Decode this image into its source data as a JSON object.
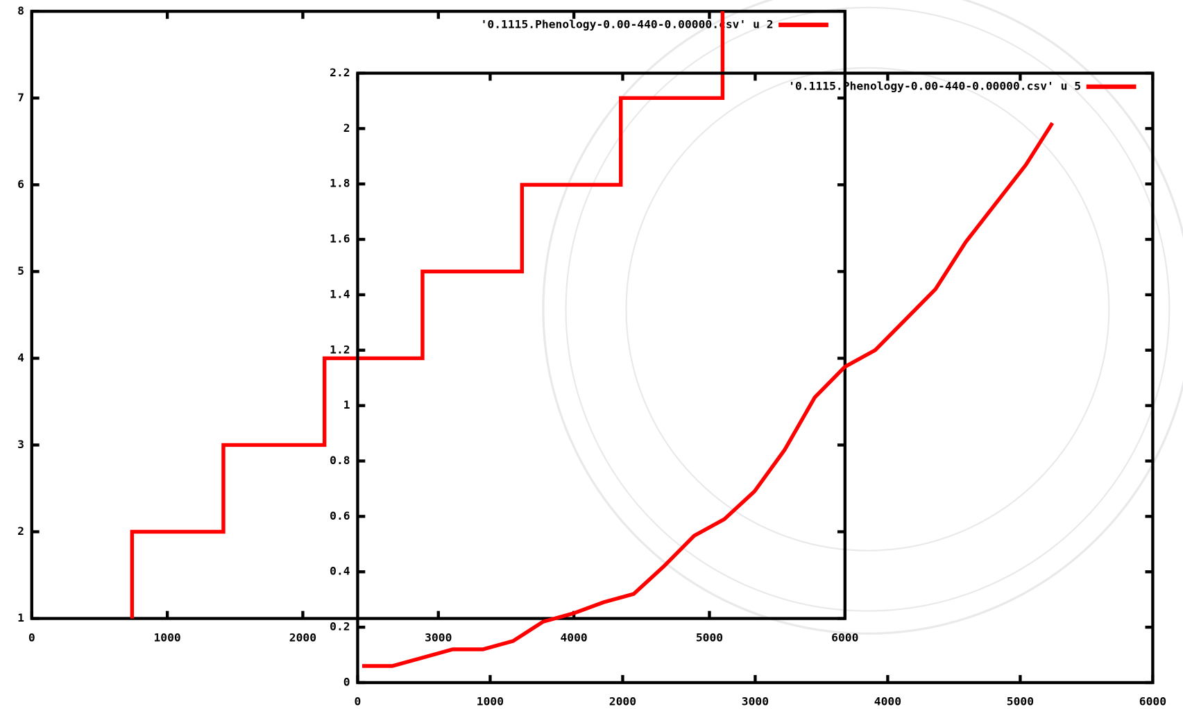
{
  "chart_data": [
    {
      "type": "line",
      "x": [
        740,
        740,
        1414,
        1414,
        2160,
        2160,
        2883,
        2883,
        3617,
        3617,
        4346,
        4346,
        5097,
        5097
      ],
      "series": [
        {
          "name": "'0.1115.Phenology-0.00-440-0.00000.csv' u 2",
          "color": "#ff0000",
          "values": [
            1,
            2,
            2,
            3,
            3,
            4,
            4,
            5,
            5,
            6,
            6,
            7,
            7,
            8
          ]
        }
      ],
      "xlim": [
        0,
        6000
      ],
      "xticks": [
        0,
        1000,
        2000,
        3000,
        4000,
        5000,
        6000
      ],
      "ylim": [
        1,
        8
      ],
      "yticks": [
        1,
        2,
        3,
        4,
        5,
        6,
        7,
        8
      ]
    },
    {
      "type": "line",
      "x": [
        34,
        262,
        490,
        717,
        945,
        1173,
        1400,
        1628,
        1856,
        2083,
        2311,
        2539,
        2767,
        2994,
        3222,
        3450,
        3677,
        3905,
        4133,
        4360,
        4588,
        4816,
        5044,
        5243
      ],
      "series": [
        {
          "name": "'0.1115.Phenology-0.00-440-0.00000.csv' u 5",
          "color": "#ff0000",
          "values": [
            0.06,
            0.06,
            0.09,
            0.12,
            0.12,
            0.15,
            0.22,
            0.25,
            0.29,
            0.32,
            0.42,
            0.53,
            0.59,
            0.69,
            0.84,
            1.03,
            1.14,
            1.2,
            1.31,
            1.42,
            1.59,
            1.73,
            1.87,
            2.02
          ]
        }
      ],
      "xlim": [
        0,
        6000
      ],
      "xticks": [
        0,
        1000,
        2000,
        3000,
        4000,
        5000,
        6000
      ],
      "ylim": [
        0,
        2.2
      ],
      "yticks": [
        0,
        0.2,
        0.4,
        0.6,
        0.8,
        1,
        1.2,
        1.4,
        1.6,
        1.8,
        2,
        2.2
      ]
    }
  ]
}
